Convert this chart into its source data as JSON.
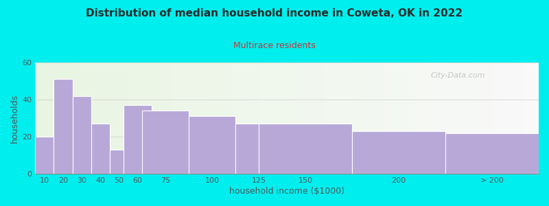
{
  "title": "Distribution of median household income in Coweta, OK in 2022",
  "subtitle": "Multirace residents",
  "xlabel": "household income ($1000)",
  "ylabel": "households",
  "background_outer": "#00EEEE",
  "bar_color": "#b8a8d8",
  "bar_edge_color": "#ffffff",
  "title_color": "#2a2a2a",
  "subtitle_color": "#cc3333",
  "axis_label_color": "#555555",
  "tick_label_color": "#555555",
  "categories": [
    "10",
    "20",
    "30",
    "40",
    "50",
    "60",
    "75",
    "100",
    "125",
    "150",
    "200",
    "> 200"
  ],
  "values": [
    20,
    51,
    42,
    27,
    13,
    37,
    34,
    31,
    27,
    27,
    23,
    22
  ],
  "bar_positions": [
    10,
    20,
    30,
    40,
    50,
    60,
    75,
    100,
    125,
    150,
    200,
    250
  ],
  "bar_widths": [
    10,
    10,
    10,
    10,
    10,
    15,
    25,
    25,
    25,
    50,
    50,
    50
  ],
  "xlim": [
    5,
    275
  ],
  "ylim": [
    0,
    60
  ],
  "yticks": [
    0,
    20,
    40,
    60
  ],
  "xtick_positions": [
    10,
    20,
    30,
    40,
    50,
    60,
    75,
    100,
    125,
    150,
    200,
    250
  ],
  "watermark": "City-Data.com"
}
